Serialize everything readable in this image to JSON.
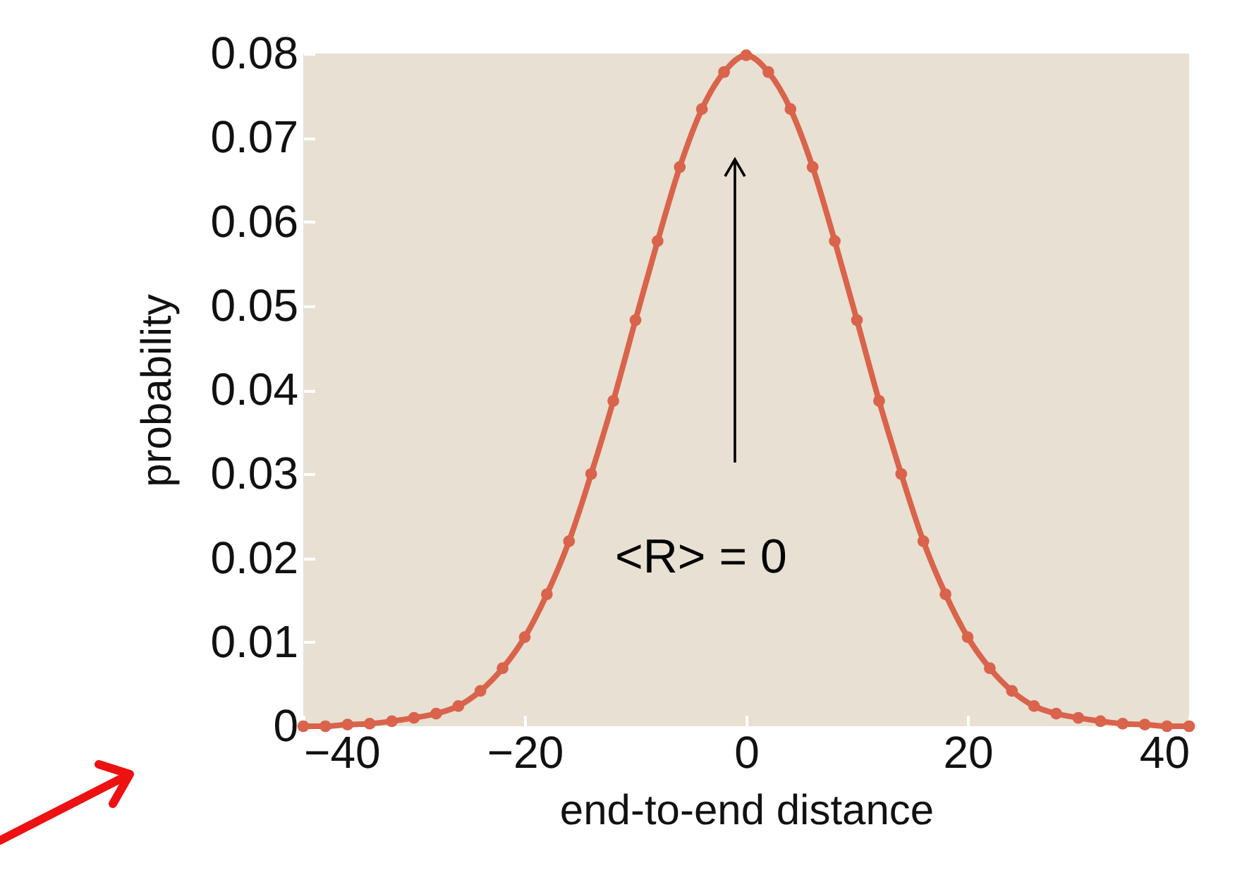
{
  "chart_data": {
    "type": "line",
    "xlabel": "end-to-end distance",
    "ylabel": "probability",
    "x": [
      -40,
      -38,
      -36,
      -34,
      -32,
      -30,
      -28,
      -26,
      -24,
      -22,
      -20,
      -18,
      -16,
      -14,
      -12,
      -10,
      -8,
      -6,
      -4,
      -2,
      0,
      2,
      4,
      6,
      8,
      10,
      12,
      14,
      16,
      18,
      20,
      22,
      24,
      26,
      28,
      30,
      32,
      34,
      36,
      38,
      40
    ],
    "series": [
      {
        "color": "#d9634b",
        "values": [
          0,
          0,
          0.0002,
          0.0003,
          0.0006,
          0.001,
          0.0015,
          0.0024,
          0.0042,
          0.0069,
          0.0106,
          0.0157,
          0.022,
          0.03,
          0.0387,
          0.0483,
          0.0577,
          0.0665,
          0.0734,
          0.0778,
          0.0798,
          0.0778,
          0.0734,
          0.0665,
          0.0577,
          0.0483,
          0.0387,
          0.03,
          0.022,
          0.0157,
          0.0106,
          0.0069,
          0.0042,
          0.0024,
          0.0015,
          0.001,
          0.0006,
          0.0003,
          0.0002,
          0,
          0
        ]
      }
    ],
    "xlim": [
      -40,
      40
    ],
    "xticks": [
      {
        "value": -40,
        "label": "−40"
      },
      {
        "value": -20,
        "label": "−20"
      },
      0,
      20,
      40
    ],
    "ylim": [
      0,
      0.08
    ],
    "yticks": [
      0,
      0.01,
      0.02,
      0.03,
      0.04,
      0.05,
      0.06,
      0.07,
      0.08
    ],
    "annotations": [
      "<R> = 0"
    ],
    "grid": false,
    "marker": "circle",
    "line_style": "solid"
  }
}
